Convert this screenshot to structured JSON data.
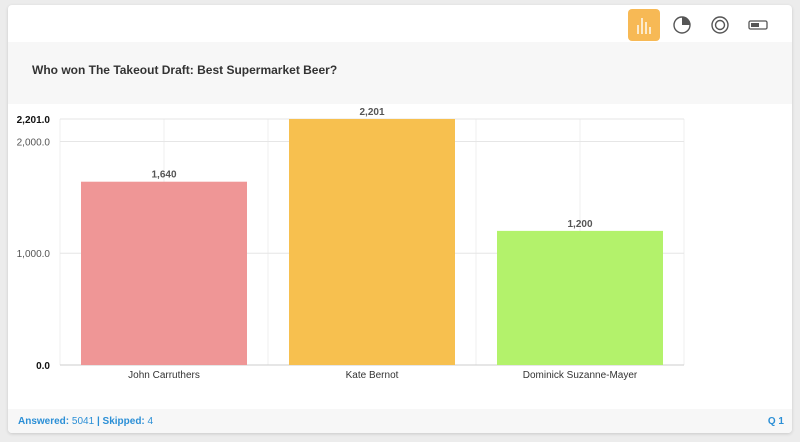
{
  "toolbar": {
    "buttons": [
      {
        "icon": "bar-chart-icon",
        "active": true
      },
      {
        "icon": "pie-chart-icon",
        "active": false
      },
      {
        "icon": "donut-chart-icon",
        "active": false
      },
      {
        "icon": "toggle-icon",
        "active": false
      }
    ],
    "active_color": "#f7b955"
  },
  "question": "Who won The Takeout Draft: Best Supermarket Beer?",
  "chart_data": {
    "type": "bar",
    "title": "Who won The Takeout Draft: Best Supermarket Beer?",
    "categories": [
      "John Carruthers",
      "Kate Bernot",
      "Dominick Suzanne-Mayer"
    ],
    "values": [
      1640,
      2201,
      1200
    ],
    "value_labels": [
      "1,640",
      "2,201",
      "1,200"
    ],
    "colors": [
      "#ef9696",
      "#f7c04f",
      "#b3f26b"
    ],
    "yticks": [
      {
        "value": 0,
        "label": "0.0",
        "bold": true
      },
      {
        "value": 1000,
        "label": "1,000.0",
        "bold": false
      },
      {
        "value": 2000,
        "label": "2,000.0",
        "bold": false
      },
      {
        "value": 2201,
        "label": "2,201.0",
        "bold": true
      }
    ],
    "ylim": [
      0,
      2201
    ],
    "grid": true,
    "legend": "none"
  },
  "footer": {
    "answered_label": "Answered:",
    "answered_value": "5041",
    "separator": "|",
    "skipped_label": "Skipped:",
    "skipped_value": "4",
    "question_number": "Q 1"
  }
}
